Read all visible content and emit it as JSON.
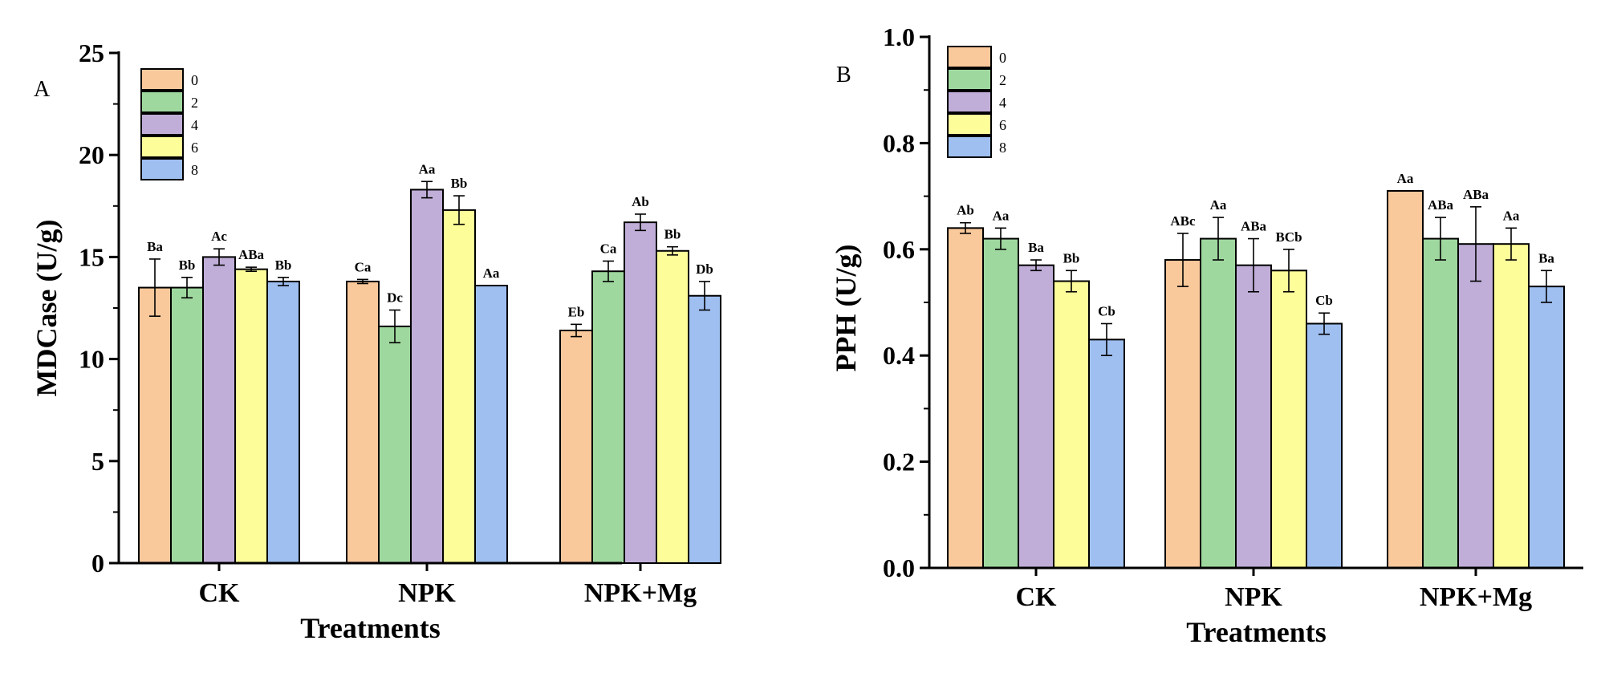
{
  "chart_data": [
    {
      "type": "bar",
      "panel_label": "A",
      "xlabel": "Treatments",
      "ylabel": "MDCase (U/g)",
      "ylim": [
        0,
        25
      ],
      "yticks": [
        "0",
        "5",
        "10",
        "15",
        "20",
        "25"
      ],
      "yticks_values": [
        0,
        5,
        10,
        15,
        20,
        25
      ],
      "categories": [
        "CK",
        "NPK",
        "NPK+Mg"
      ],
      "legend_position": "top-left",
      "series": [
        {
          "name": "0",
          "color": "#f9c89b",
          "values": [
            13.5,
            13.8,
            11.4
          ],
          "errors": [
            1.4,
            0.1,
            0.3
          ],
          "labels": [
            "Ba",
            "Ca",
            "Eb"
          ]
        },
        {
          "name": "2",
          "color": "#9fd89f",
          "values": [
            13.5,
            11.6,
            14.3
          ],
          "errors": [
            0.5,
            0.8,
            0.5
          ],
          "labels": [
            "Bb",
            "Dc",
            "Ca"
          ]
        },
        {
          "name": "4",
          "color": "#c0aed8",
          "values": [
            15.0,
            18.3,
            16.7
          ],
          "errors": [
            0.4,
            0.4,
            0.4
          ],
          "labels": [
            "Ac",
            "Aa",
            "Ab"
          ]
        },
        {
          "name": "6",
          "color": "#fdfd9a",
          "values": [
            14.4,
            17.3,
            15.3
          ],
          "errors": [
            0.1,
            0.7,
            0.2
          ],
          "labels": [
            "ABa",
            "Bb",
            "Bb"
          ]
        },
        {
          "name": "8",
          "color": "#9fbff0",
          "values": [
            13.8,
            13.6,
            13.1
          ],
          "errors": [
            0.2,
            0.0,
            0.7
          ],
          "labels": [
            "Bb",
            "Aa",
            "Db"
          ]
        }
      ]
    },
    {
      "type": "bar",
      "panel_label": "B",
      "xlabel": "Treatments",
      "ylabel": "PPH (U/g)",
      "ylim": [
        0,
        1.0
      ],
      "yticks": [
        "0.0",
        "0.2",
        "0.4",
        "0.6",
        "0.8",
        "1.0"
      ],
      "yticks_values": [
        0,
        0.2,
        0.4,
        0.6,
        0.8,
        1.0
      ],
      "categories": [
        "CK",
        "NPK",
        "NPK+Mg"
      ],
      "legend_position": "top-left",
      "series": [
        {
          "name": "0",
          "color": "#f9c89b",
          "values": [
            0.64,
            0.58,
            0.71
          ],
          "errors": [
            0.01,
            0.05,
            0.0
          ],
          "labels": [
            "Ab",
            "ABc",
            "Aa"
          ]
        },
        {
          "name": "2",
          "color": "#9fd89f",
          "values": [
            0.62,
            0.62,
            0.62
          ],
          "errors": [
            0.02,
            0.04,
            0.04
          ],
          "labels": [
            "Aa",
            "Aa",
            "ABa"
          ]
        },
        {
          "name": "4",
          "color": "#c0aed8",
          "values": [
            0.57,
            0.57,
            0.61
          ],
          "errors": [
            0.01,
            0.05,
            0.07
          ],
          "labels": [
            "Ba",
            "ABa",
            "ABa"
          ]
        },
        {
          "name": "6",
          "color": "#fdfd9a",
          "values": [
            0.54,
            0.56,
            0.61
          ],
          "errors": [
            0.02,
            0.04,
            0.03
          ],
          "labels": [
            "Bb",
            "BCb",
            "Aa"
          ]
        },
        {
          "name": "8",
          "color": "#9fbff0",
          "values": [
            0.43,
            0.46,
            0.53
          ],
          "errors": [
            0.03,
            0.02,
            0.03
          ],
          "labels": [
            "Cb",
            "Cb",
            "Ba"
          ]
        }
      ]
    }
  ]
}
